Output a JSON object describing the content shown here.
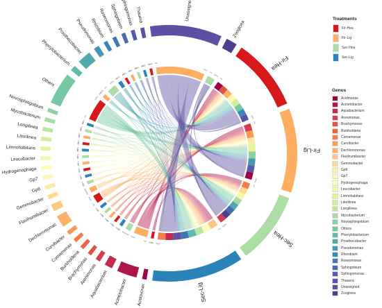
{
  "treatments": {
    "title": "Treatments",
    "items": [
      {
        "label": "Fir-Hea",
        "color": "#d7191c"
      },
      {
        "label": "Fir-Lig",
        "color": "#fdae61"
      },
      {
        "label": "Sec-Hea",
        "color": "#abdda4"
      },
      {
        "label": "Sec-Lig",
        "color": "#2b83ba"
      }
    ]
  },
  "genus": {
    "title": "Genus",
    "items": [
      {
        "label": "Acidovorax",
        "color": "#9e0142"
      },
      {
        "label": "Acinetobacter",
        "color": "#b0154a"
      },
      {
        "label": "Aquabacterium",
        "color": "#c22a4f"
      },
      {
        "label": "Arenimonas",
        "color": "#d53e4f"
      },
      {
        "label": "Brachymonas",
        "color": "#e25149"
      },
      {
        "label": "Burkholderia",
        "color": "#ec6445"
      },
      {
        "label": "Comamonas",
        "color": "#f47e4b"
      },
      {
        "label": "Curvibacter",
        "color": "#f99a57"
      },
      {
        "label": "Dechloromonas",
        "color": "#fdb366"
      },
      {
        "label": "Flavihumibacter",
        "color": "#fdc87d"
      },
      {
        "label": "Gemmobacter",
        "color": "#fedb92"
      },
      {
        "label": "Gp6",
        "color": "#feeaa6"
      },
      {
        "label": "Gp7",
        "color": "#fef6b8"
      },
      {
        "label": "Hydrogenophaga",
        "color": "#fbfcbd"
      },
      {
        "label": "Leucobacter",
        "color": "#f2f9ac"
      },
      {
        "label": "Limnohabitans",
        "color": "#e6f598"
      },
      {
        "label": "Litorilinea",
        "color": "#d4ed9b"
      },
      {
        "label": "Longilinea",
        "color": "#bee5a0"
      },
      {
        "label": "Mycobacterium",
        "color": "#a6dba4"
      },
      {
        "label": "Novosphingobium",
        "color": "#8ed0a4"
      },
      {
        "label": "Others",
        "color": "#76c7a4"
      },
      {
        "label": "Phenylobacterium",
        "color": "#62baa8"
      },
      {
        "label": "Prosthecobacter",
        "color": "#52a9ad"
      },
      {
        "label": "Pseudomonas",
        "color": "#4498b2"
      },
      {
        "label": "Rhizobium",
        "color": "#3a87b8"
      },
      {
        "label": "Roseomonas",
        "color": "#3f78b4"
      },
      {
        "label": "Sphingobium",
        "color": "#4a69ae"
      },
      {
        "label": "Sphingomonas",
        "color": "#555ca8"
      },
      {
        "label": "Thauera",
        "color": "#5a52a3"
      },
      {
        "label": "Unassigned",
        "color": "#5e4fa2"
      },
      {
        "label": "Zoogloea",
        "color": "#4b3f8f"
      }
    ]
  },
  "chord_data": {
    "sectors": [
      {
        "name": "Acidovorax",
        "size": 0.55
      },
      {
        "name": "Acinetobacter",
        "size": 2.5
      },
      {
        "name": "Aquabacterium",
        "size": 1.0
      },
      {
        "name": "Arenimonas",
        "size": 0.6
      },
      {
        "name": "Brachymonas",
        "size": 0.5
      },
      {
        "name": "Burkholderia",
        "size": 0.5
      },
      {
        "name": "Comamonas",
        "size": 0.5
      },
      {
        "name": "Curvibacter",
        "size": 0.55
      },
      {
        "name": "Dechloromonas",
        "size": 1.5
      },
      {
        "name": "Flavihumibacter",
        "size": 0.9
      },
      {
        "name": "Gemmobacter",
        "size": 0.55
      },
      {
        "name": "Gp6",
        "size": 0.5
      },
      {
        "name": "Gp7",
        "size": 0.5
      },
      {
        "name": "Hydrogenophaga",
        "size": 0.5
      },
      {
        "name": "Leucobacter",
        "size": 0.5
      },
      {
        "name": "Limnohabitans",
        "size": 0.5
      },
      {
        "name": "Litorilinea",
        "size": 0.5
      },
      {
        "name": "Longilinea",
        "size": 0.5
      },
      {
        "name": "Mycobacterium",
        "size": 0.5
      },
      {
        "name": "Novosphingobium",
        "size": 0.5
      },
      {
        "name": "Others",
        "size": 4.0
      },
      {
        "name": "Phenylobacterium",
        "size": 0.7
      },
      {
        "name": "Prosthecobacter",
        "size": 1.7
      },
      {
        "name": "Pseudomonas",
        "size": 0.7
      },
      {
        "name": "Rhizobium",
        "size": 0.5
      },
      {
        "name": "Roseomonas",
        "size": 0.5
      },
      {
        "name": "Sphingobium",
        "size": 0.5
      },
      {
        "name": "Sphingomonas",
        "size": 0.5
      },
      {
        "name": "Thauera",
        "size": 0.5
      },
      {
        "name": "Unassigned",
        "size": 9.0
      },
      {
        "name": "Zoogloea",
        "size": 1.4
      },
      {
        "name": "Fir-Hea",
        "size": 9.0
      },
      {
        "name": "Fir-Lig",
        "size": 10.5
      },
      {
        "name": "Sec-Hea",
        "size": 9.0
      },
      {
        "name": "Sec-Lig",
        "size": 11.5
      }
    ],
    "tick_labels": [
      "0%",
      "100%"
    ]
  }
}
